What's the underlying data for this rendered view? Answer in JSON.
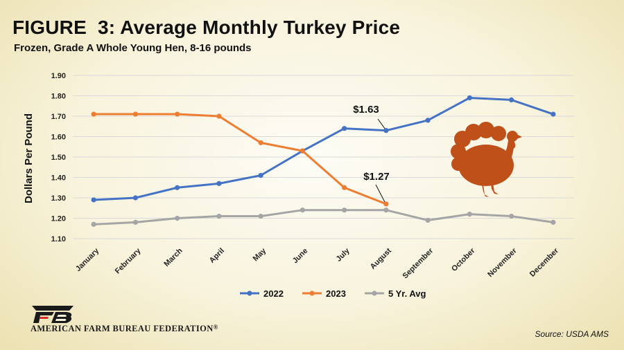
{
  "header": {
    "title": "FIGURE  3: Average Monthly Turkey Price",
    "subtitle": "Frozen, Grade A Whole Young Hen, 8-16 pounds"
  },
  "footer": {
    "organization": "American Farm Bureau Federation",
    "trademark": "®",
    "logo_text": "FB",
    "source": "Source: USDA AMS"
  },
  "colors": {
    "series_2022": "#4472c4",
    "series_2023": "#ed7d31",
    "series_avg": "#a5a5a5",
    "turkey": "#c0501a"
  },
  "chart_data": {
    "type": "line",
    "ylabel": "Dollars Per Pound",
    "xlabel": "",
    "ylim": [
      1.1,
      1.9
    ],
    "yticks": [
      "1.10",
      "1.20",
      "1.30",
      "1.40",
      "1.50",
      "1.60",
      "1.70",
      "1.80",
      "1.90"
    ],
    "grid": true,
    "legend_position": "bottom",
    "categories": [
      "January",
      "February",
      "March",
      "April",
      "May",
      "June",
      "July",
      "August",
      "September",
      "October",
      "November",
      "December"
    ],
    "series": [
      {
        "name": "2022",
        "color": "#4472c4",
        "values": [
          1.29,
          1.3,
          1.35,
          1.37,
          1.41,
          1.53,
          1.64,
          1.63,
          1.68,
          1.79,
          1.78,
          1.71
        ]
      },
      {
        "name": "2023",
        "color": "#ed7d31",
        "values": [
          1.71,
          1.71,
          1.71,
          1.7,
          1.57,
          1.53,
          1.35,
          1.27,
          null,
          null,
          null,
          null
        ]
      },
      {
        "name": "5 Yr. Avg",
        "color": "#a5a5a5",
        "values": [
          1.17,
          1.18,
          1.2,
          1.21,
          1.21,
          1.24,
          1.24,
          1.24,
          1.19,
          1.22,
          1.21,
          1.18
        ]
      }
    ],
    "annotations": [
      {
        "text": "$1.63",
        "series": "2022",
        "category": "August"
      },
      {
        "text": "$1.27",
        "series": "2023",
        "category": "August"
      }
    ]
  }
}
